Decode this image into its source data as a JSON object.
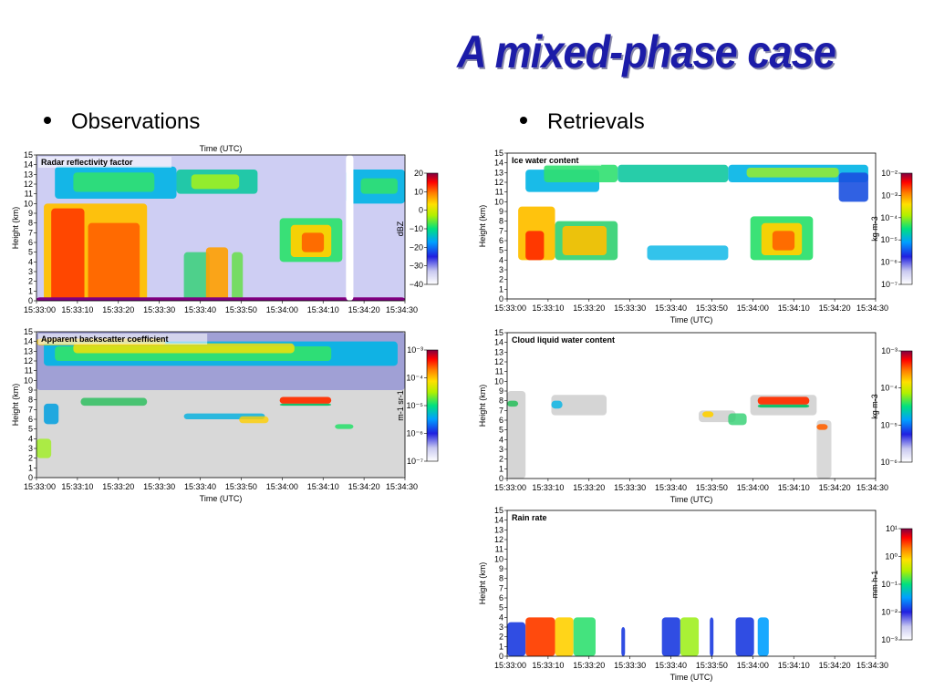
{
  "title": "A mixed-phase case",
  "bullets": {
    "left": "Observations",
    "right": "Retrievals"
  },
  "colors": {
    "title": "#1c1ca8"
  },
  "chart_data": [
    {
      "type": "heatmap",
      "title": "Radar reflectivity factor",
      "xlabel": "Time (UTC)",
      "xlabel_position": "top",
      "ylabel": "Height (km)",
      "x_ticks": [
        "15:33:00",
        "15:33:10",
        "15:33:20",
        "15:33:30",
        "15:33:40",
        "15:33:50",
        "15:34:00",
        "15:34:10",
        "15:34:20",
        "15:34:30"
      ],
      "y_ticks": [
        0,
        1,
        2,
        3,
        4,
        5,
        6,
        7,
        8,
        9,
        10,
        11,
        12,
        13,
        14,
        15
      ],
      "ylim": [
        0,
        15
      ],
      "colorbar": {
        "label": "dBZ",
        "ticks": [
          "20",
          "10",
          "0",
          "−10",
          "−20",
          "−30",
          "−40"
        ],
        "range": [
          -40,
          20
        ]
      }
    },
    {
      "type": "heatmap",
      "title": "Apparent backscatter coefficient",
      "xlabel": "Time (UTC)",
      "ylabel": "Height (km)",
      "x_ticks": [
        "15:33:00",
        "15:33:10",
        "15:33:20",
        "15:33:30",
        "15:33:40",
        "15:33:50",
        "15:34:00",
        "15:34:10",
        "15:34:20",
        "15:34:30"
      ],
      "y_ticks": [
        0,
        1,
        2,
        3,
        4,
        5,
        6,
        7,
        8,
        9,
        10,
        11,
        12,
        13,
        14,
        15
      ],
      "ylim": [
        0,
        15
      ],
      "colorbar": {
        "label": "m-1 sr-1",
        "ticks": [
          "10⁻³",
          "10⁻⁴",
          "10⁻⁵",
          "10⁻⁶",
          "10⁻⁷"
        ],
        "scale": "log"
      }
    },
    {
      "type": "heatmap",
      "title": "Ice water content",
      "xlabel": "Time (UTC)",
      "ylabel": "Height (km)",
      "x_ticks": [
        "15:33:00",
        "15:33:10",
        "15:33:20",
        "15:33:30",
        "15:33:40",
        "15:33:50",
        "15:34:00",
        "15:34:10",
        "15:34:20",
        "15:34:30"
      ],
      "y_ticks": [
        0,
        1,
        2,
        3,
        4,
        5,
        6,
        7,
        8,
        9,
        10,
        11,
        12,
        13,
        14,
        15
      ],
      "ylim": [
        0,
        15
      ],
      "colorbar": {
        "label": "kg m-3",
        "ticks": [
          "10⁻²",
          "10⁻³",
          "10⁻⁴",
          "10⁻⁵",
          "10⁻⁶",
          "10⁻⁷"
        ],
        "scale": "log"
      }
    },
    {
      "type": "heatmap",
      "title": "Cloud liquid water content",
      "xlabel": "Time (UTC)",
      "ylabel": "Height (km)",
      "x_ticks": [
        "15:33:00",
        "15:33:10",
        "15:33:20",
        "15:33:30",
        "15:33:40",
        "15:33:50",
        "15:34:00",
        "15:34:10",
        "15:34:20",
        "15:34:30"
      ],
      "y_ticks": [
        0,
        1,
        2,
        3,
        4,
        5,
        6,
        7,
        8,
        9,
        10,
        11,
        12,
        13,
        14,
        15
      ],
      "ylim": [
        0,
        15
      ],
      "colorbar": {
        "label": "kg m-3",
        "ticks": [
          "10⁻³",
          "10⁻⁴",
          "10⁻⁵",
          "10⁻⁶"
        ],
        "scale": "log"
      }
    },
    {
      "type": "heatmap",
      "title": "Rain rate",
      "xlabel": "Time (UTC)",
      "ylabel": "Height (km)",
      "x_ticks": [
        "15:33:00",
        "15:33:10",
        "15:33:20",
        "15:33:30",
        "15:33:40",
        "15:33:50",
        "15:34:00",
        "15:34:10",
        "15:34:20",
        "15:34:30"
      ],
      "y_ticks": [
        0,
        1,
        2,
        3,
        4,
        5,
        6,
        7,
        8,
        9,
        10,
        11,
        12,
        13,
        14,
        15
      ],
      "ylim": [
        0,
        15
      ],
      "colorbar": {
        "label": "mm h-1",
        "ticks": [
          "10¹",
          "10⁰",
          "10⁻¹",
          "10⁻²",
          "10⁻³"
        ],
        "scale": "log"
      }
    }
  ]
}
